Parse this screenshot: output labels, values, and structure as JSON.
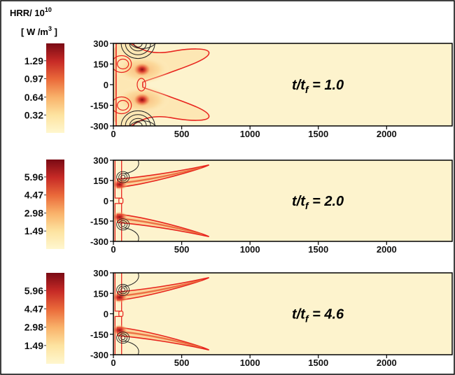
{
  "figure": {
    "colorbar_title_line1": "HRR/ 10",
    "colorbar_title_exp": "10",
    "colorbar_title_line2": "[ W /m",
    "colorbar_title_unit_exp": "3",
    "colorbar_title_close": " ]"
  },
  "colors": {
    "frame": "#000000",
    "background_field": "#fdf3cd",
    "flame_red": "#e8251e",
    "flame_dark": "#8b0b10",
    "colormap": [
      "#fff7cf",
      "#fde3a0",
      "#f9b26a",
      "#ea6a3a",
      "#c62a26",
      "#7a0a14"
    ]
  },
  "chart_data": [
    {
      "type": "heatmap",
      "annotation": {
        "prefix": "t/t",
        "sub": "f",
        "suffix": " = 1.0"
      },
      "x_ticks": [
        "0",
        "500",
        "1000",
        "1500",
        "2000"
      ],
      "x_tick_values": [
        0,
        500,
        1000,
        1500,
        2000
      ],
      "y_ticks": [
        "300",
        "150",
        "0",
        "-150",
        "-300"
      ],
      "y_tick_values": [
        300,
        150,
        0,
        -150,
        -300
      ],
      "xlim": [
        0,
        2480
      ],
      "ylim": [
        -300,
        300
      ],
      "colorbar_ticks": [
        "1.29",
        "0.97",
        "0.64",
        "0.32"
      ],
      "colorbar_tick_values": [
        1.29,
        0.97,
        0.64,
        0.32
      ],
      "colorbar_range": [
        0,
        1.6
      ],
      "hotspots": [
        {
          "x": 210,
          "y": 110,
          "value": 1.5
        },
        {
          "x": 210,
          "y": -110,
          "value": 1.5
        }
      ],
      "flame_tip_x": 700
    },
    {
      "type": "heatmap",
      "annotation": {
        "prefix": "t/t",
        "sub": "f",
        "suffix": " = 2.0"
      },
      "x_ticks": [
        "0",
        "500",
        "1000",
        "1500",
        "2000"
      ],
      "x_tick_values": [
        0,
        500,
        1000,
        1500,
        2000
      ],
      "y_ticks": [
        "300",
        "150",
        "0",
        "-150",
        "-300"
      ],
      "y_tick_values": [
        300,
        150,
        0,
        -150,
        -300
      ],
      "xlim": [
        0,
        2480
      ],
      "ylim": [
        -300,
        300
      ],
      "colorbar_ticks": [
        "5.96",
        "4.47",
        "2.98",
        "1.49"
      ],
      "colorbar_tick_values": [
        5.96,
        4.47,
        2.98,
        1.49
      ],
      "colorbar_range": [
        0,
        7.4
      ],
      "hotspots": [
        {
          "x": 40,
          "y": 120,
          "value": 6.5
        },
        {
          "x": 40,
          "y": -120,
          "value": 6.5
        }
      ],
      "flame_tip_x": 700
    },
    {
      "type": "heatmap",
      "annotation": {
        "prefix": "t/t",
        "sub": "f",
        "suffix": " = 4.6"
      },
      "x_ticks": [
        "0",
        "500",
        "1000",
        "1500",
        "2000"
      ],
      "x_tick_values": [
        0,
        500,
        1000,
        1500,
        2000
      ],
      "y_ticks": [
        "300",
        "150",
        "0",
        "-150",
        "-300"
      ],
      "y_tick_values": [
        300,
        150,
        0,
        -150,
        -300
      ],
      "xlim": [
        0,
        2480
      ],
      "ylim": [
        -300,
        300
      ],
      "colorbar_ticks": [
        "5.96",
        "4.47",
        "2.98",
        "1.49"
      ],
      "colorbar_tick_values": [
        5.96,
        4.47,
        2.98,
        1.49
      ],
      "colorbar_range": [
        0,
        7.4
      ],
      "hotspots": [
        {
          "x": 40,
          "y": 120,
          "value": 6.5
        },
        {
          "x": 40,
          "y": -120,
          "value": 6.5
        }
      ],
      "flame_tip_x": 700
    }
  ]
}
